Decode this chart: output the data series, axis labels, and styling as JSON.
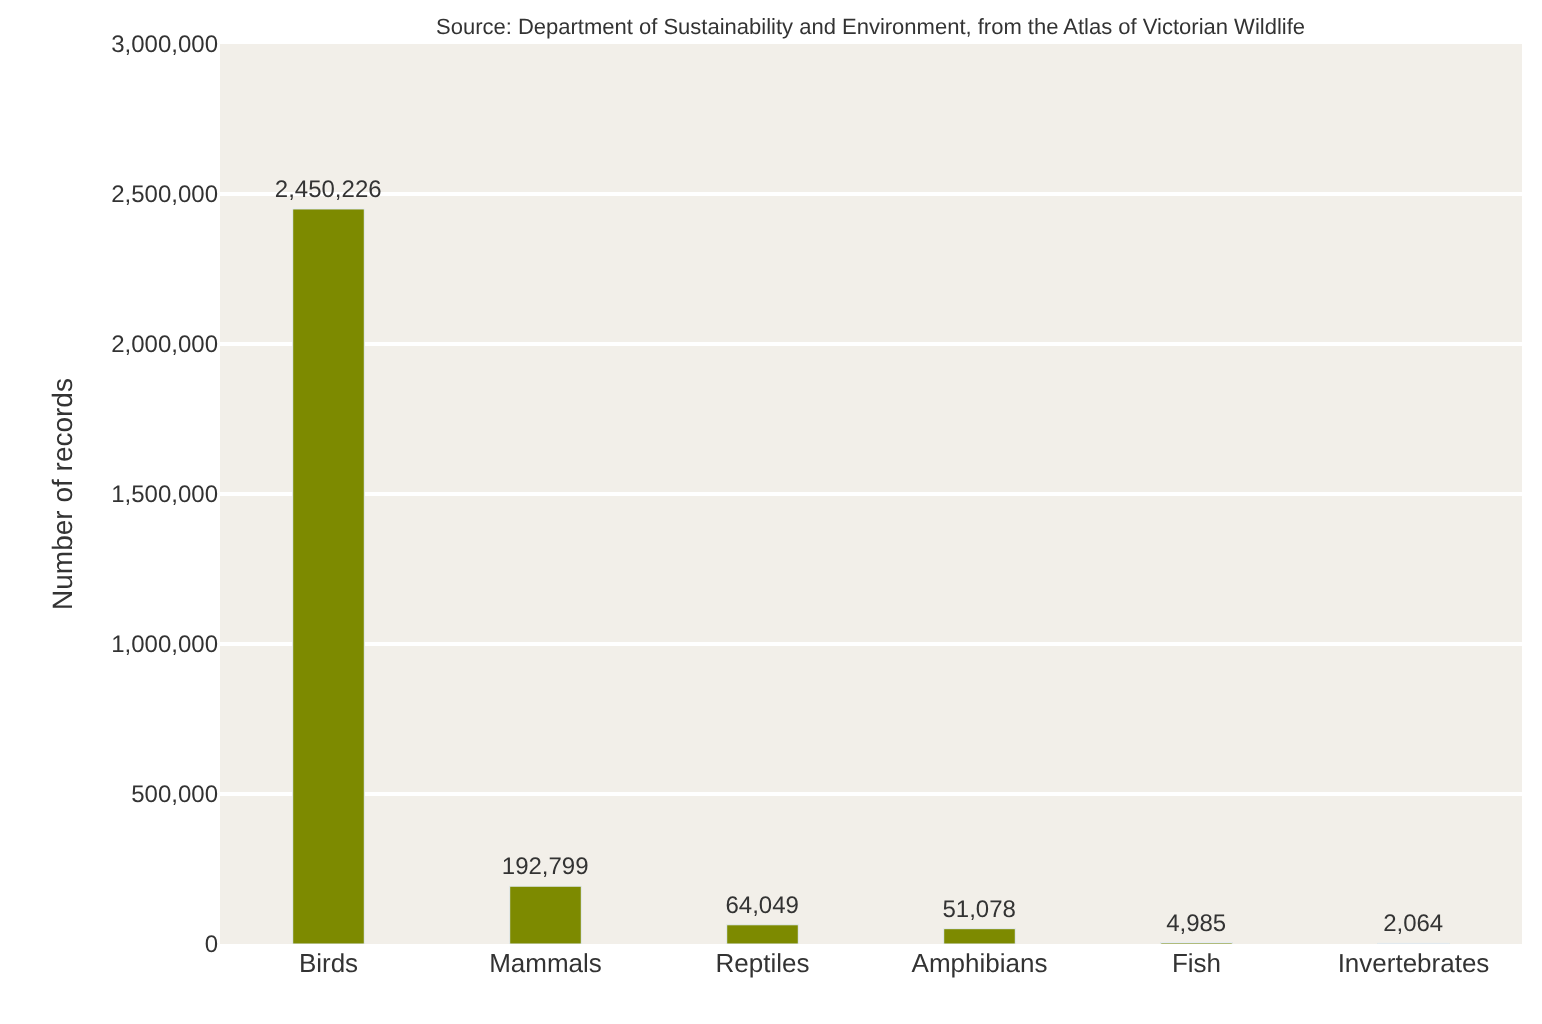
{
  "chart_data": {
    "type": "bar",
    "ylabel": "Number of records",
    "annotations": [
      "Source: Department of Sustainability and Environment, from the Atlas of Victorian Wildlife"
    ],
    "categories": [
      "Birds",
      "Mammals",
      "Reptiles",
      "Amphibians",
      "Fish",
      "Invertebrates"
    ],
    "values": [
      2450226,
      192799,
      64049,
      51078,
      4985,
      2064
    ],
    "value_labels": [
      "2,450,226",
      "192,799",
      "64,049",
      "51,078",
      "4,985",
      "2,064"
    ],
    "color": "#7d8a00",
    "grid": "y",
    "ylim": [
      0,
      3000000
    ],
    "yticks": [
      {
        "value": 0,
        "label": "0"
      },
      {
        "value": 500000,
        "label": "500,000"
      },
      {
        "value": 1000000,
        "label": "1,000,000"
      },
      {
        "value": 1500000,
        "label": "1,500,000"
      },
      {
        "value": 2000000,
        "label": "2,000,000"
      },
      {
        "value": 2500000,
        "label": "2,500,000"
      },
      {
        "value": 3000000,
        "label": "3,000,000"
      }
    ]
  }
}
